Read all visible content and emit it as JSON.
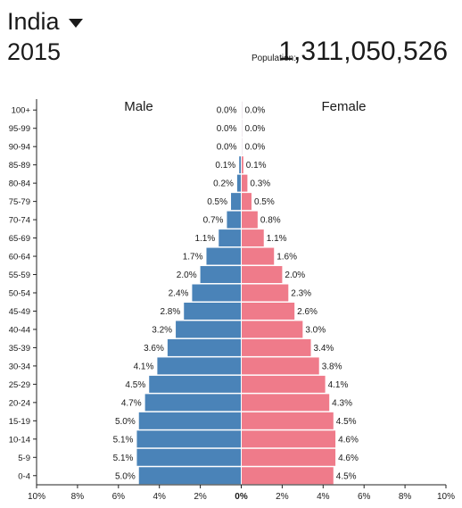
{
  "header": {
    "country": "India",
    "country_dropdown_icon": "caret-down-icon",
    "year": "2015",
    "population_label": "Population:",
    "population_value": "1,311,050,526"
  },
  "colors": {
    "male": "#4a83b8",
    "female": "#ef7b8a",
    "axis": "#222222"
  },
  "chart_data": {
    "type": "bar",
    "orientation": "horizontal",
    "layout": "population-pyramid",
    "categories": [
      "100+",
      "95-99",
      "90-94",
      "85-89",
      "80-84",
      "75-79",
      "70-74",
      "65-69",
      "60-64",
      "55-59",
      "50-54",
      "45-49",
      "40-44",
      "35-39",
      "30-34",
      "25-29",
      "20-24",
      "15-19",
      "10-14",
      "5-9",
      "0-4"
    ],
    "series": [
      {
        "name": "Male",
        "values": [
          0.0,
          0.0,
          0.0,
          0.1,
          0.2,
          0.5,
          0.7,
          1.1,
          1.7,
          2.0,
          2.4,
          2.8,
          3.2,
          3.6,
          4.1,
          4.5,
          4.7,
          5.0,
          5.1,
          5.1,
          5.0
        ]
      },
      {
        "name": "Female",
        "values": [
          0.0,
          0.0,
          0.0,
          0.1,
          0.3,
          0.5,
          0.8,
          1.1,
          1.6,
          2.0,
          2.3,
          2.6,
          3.0,
          3.4,
          3.8,
          4.1,
          4.3,
          4.5,
          4.6,
          4.6,
          4.5
        ]
      }
    ],
    "labels": {
      "Male": [
        "0.0%",
        "0.0%",
        "0.0%",
        "0.1%",
        "0.2%",
        "0.5%",
        "0.7%",
        "1.1%",
        "1.7%",
        "2.0%",
        "2.4%",
        "2.8%",
        "3.2%",
        "3.6%",
        "4.1%",
        "4.5%",
        "4.7%",
        "5.0%",
        "5.1%",
        "5.1%",
        "5.0%"
      ],
      "Female": [
        "0.0%",
        "0.0%",
        "0.0%",
        "0.1%",
        "0.3%",
        "0.5%",
        "0.8%",
        "1.1%",
        "1.6%",
        "2.0%",
        "2.3%",
        "2.6%",
        "3.0%",
        "3.4%",
        "3.8%",
        "4.1%",
        "4.3%",
        "4.5%",
        "4.6%",
        "4.6%",
        "4.5%"
      ]
    },
    "xlim": [
      -10,
      10
    ],
    "xticks": [
      "10%",
      "8%",
      "6%",
      "4%",
      "2%",
      "0%",
      "2%",
      "4%",
      "6%",
      "8%",
      "10%"
    ],
    "xtick_values": [
      -10,
      -8,
      -6,
      -4,
      -2,
      0,
      2,
      4,
      6,
      8,
      10
    ],
    "grid": false
  }
}
